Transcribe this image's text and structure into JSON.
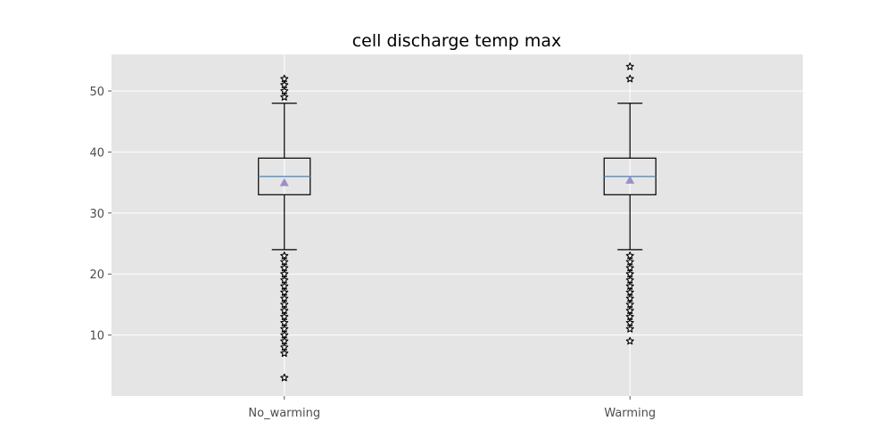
{
  "chart_data": {
    "type": "boxplot",
    "title": "cell discharge temp max",
    "xlabel": "",
    "ylabel": "",
    "ylim": [
      0,
      56
    ],
    "yticks": [
      10,
      20,
      30,
      40,
      50
    ],
    "grid": true,
    "categories": [
      "No_warming",
      "Warming"
    ],
    "boxes": [
      {
        "label": "No_warming",
        "q1": 33,
        "median": 36,
        "q3": 39,
        "whisker_low": 24,
        "whisker_high": 48,
        "mean": 35,
        "outliers": [
          3,
          7,
          8,
          9,
          10,
          11,
          12,
          13,
          14,
          15,
          16,
          17,
          18,
          19,
          20,
          21,
          22,
          23,
          49,
          50,
          51,
          52
        ]
      },
      {
        "label": "Warming",
        "q1": 33,
        "median": 36,
        "q3": 39,
        "whisker_low": 24,
        "whisker_high": 48,
        "mean": 35.4,
        "outliers": [
          9,
          11,
          12,
          13,
          14,
          15,
          16,
          17,
          18,
          19,
          20,
          21,
          22,
          23,
          52,
          54
        ]
      }
    ],
    "colors": {
      "plot_background": "#e5e5e5",
      "grid": "#ffffff",
      "box": "#000000",
      "median": "#4c8fc7",
      "mean_marker": "#9d8ec9",
      "outlier": "#000000"
    },
    "mean_marker": "triangle",
    "outlier_marker": "star"
  }
}
